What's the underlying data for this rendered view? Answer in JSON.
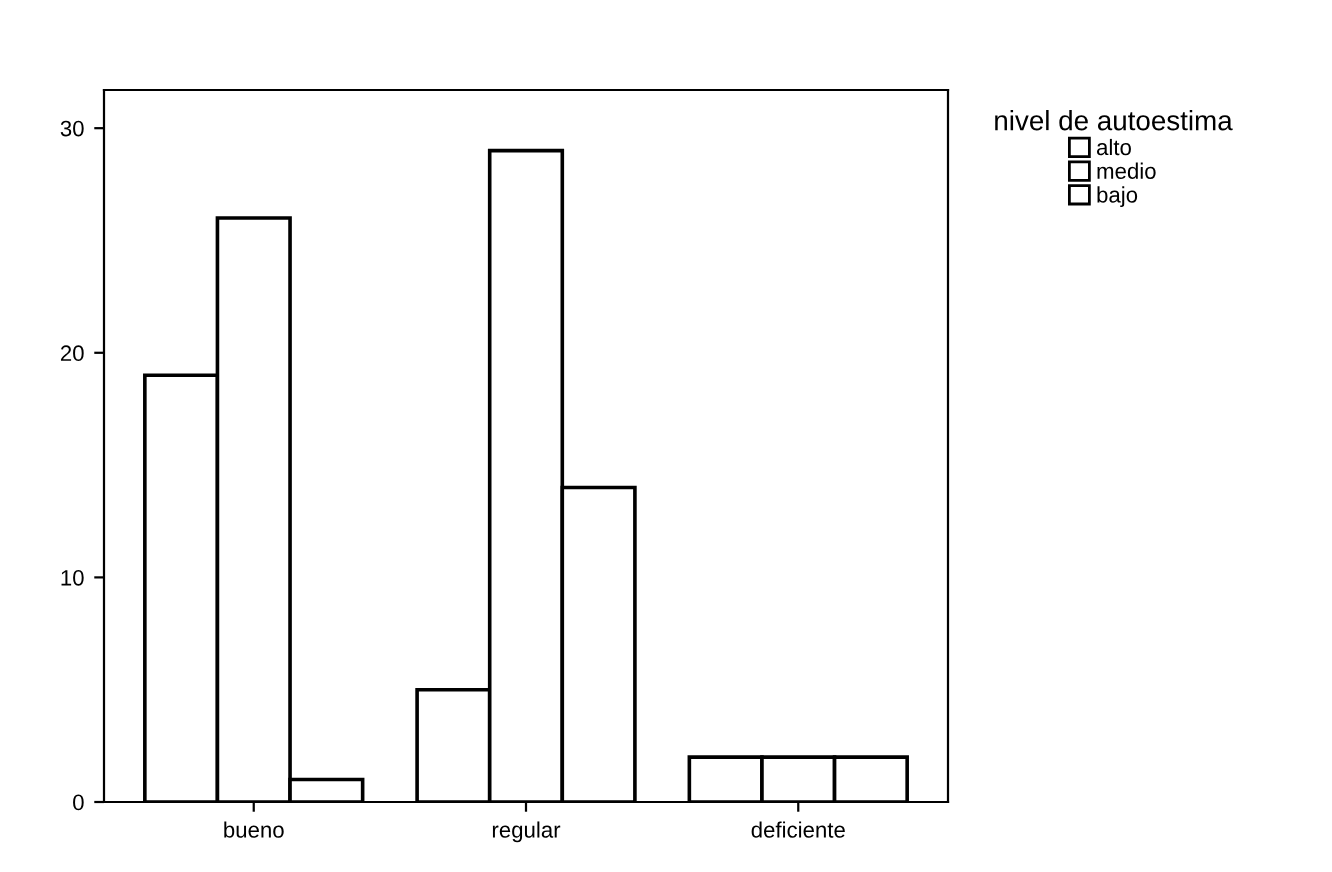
{
  "chart_data": {
    "type": "bar",
    "categories": [
      "bueno",
      "regular",
      "deficiente"
    ],
    "legend_title": "nivel de autoestima",
    "legend": "top right",
    "ylim": [
      0,
      31.7
    ],
    "yticks": [
      0,
      10,
      20,
      30
    ],
    "grid": false,
    "series": [
      {
        "name": "alto",
        "color": "#ffffff",
        "values": [
          19,
          5,
          2
        ]
      },
      {
        "name": "medio",
        "color": "#ffffff",
        "values": [
          26,
          29,
          2
        ]
      },
      {
        "name": "bajo",
        "color": "#ffffff",
        "values": [
          1,
          14,
          2
        ]
      }
    ]
  }
}
